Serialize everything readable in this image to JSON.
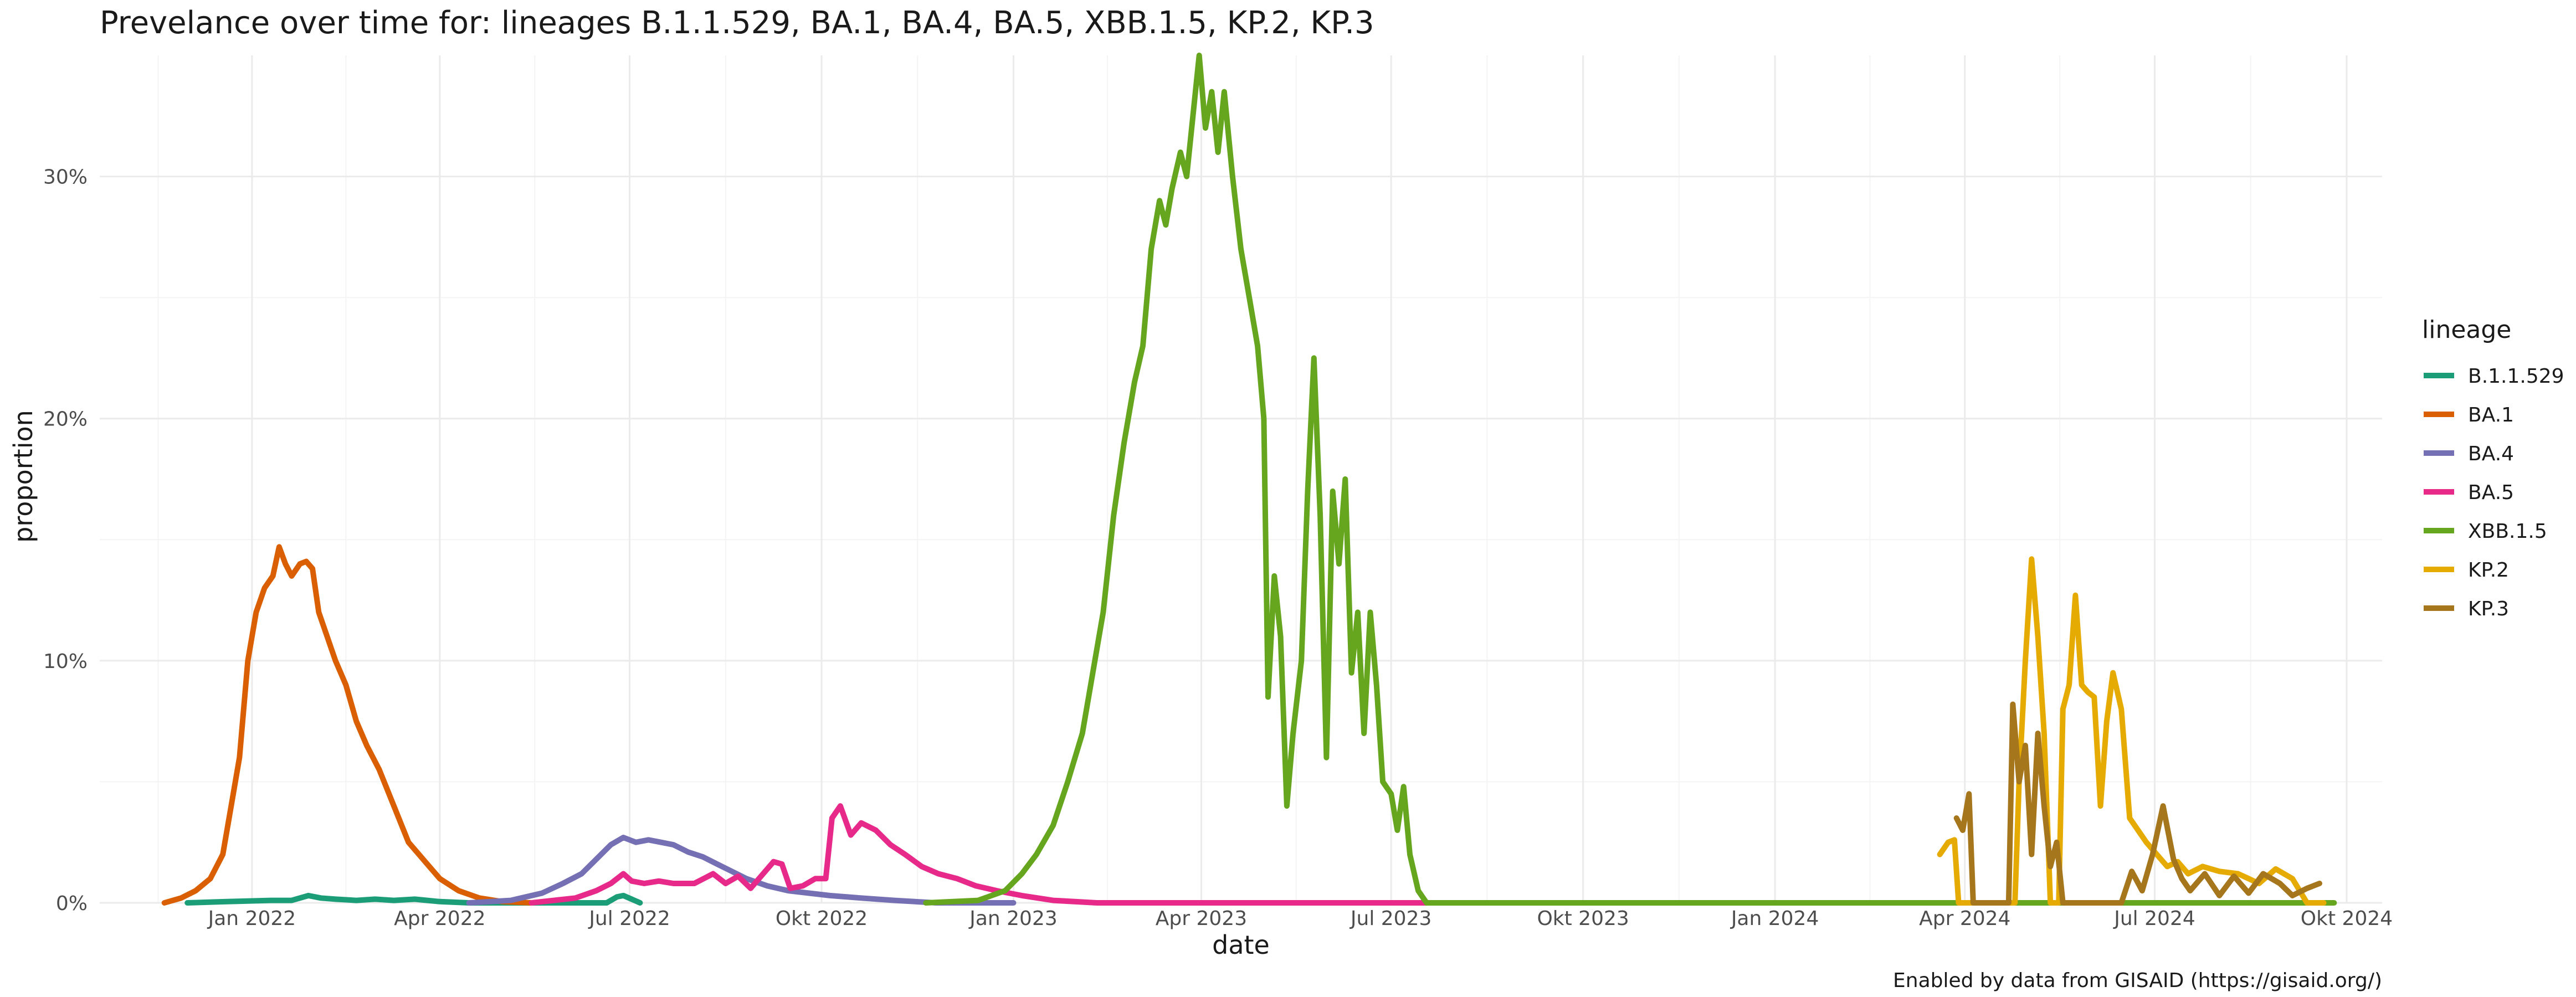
{
  "chart_data": {
    "type": "line",
    "title": "Prevelance over time for: lineages B.1.1.529, BA.1, BA.4, BA.5, XBB.1.5, KP.2, KP.3",
    "xlabel": "date",
    "ylabel": "proportion",
    "caption": "Enabled by data from GISAID (https://gisaid.org/)",
    "xlim": [
      "2021-10-20",
      "2024-10-18"
    ],
    "ylim": [
      0,
      0.35
    ],
    "x_ticks": [
      {
        "date": "2022-01-01",
        "label": "Jan 2022"
      },
      {
        "date": "2022-04-01",
        "label": "Apr 2022"
      },
      {
        "date": "2022-07-01",
        "label": "Jul 2022"
      },
      {
        "date": "2022-10-01",
        "label": "Okt 2022"
      },
      {
        "date": "2023-01-01",
        "label": "Jan 2023"
      },
      {
        "date": "2023-04-01",
        "label": "Apr 2023"
      },
      {
        "date": "2023-07-01",
        "label": "Jul 2023"
      },
      {
        "date": "2023-10-01",
        "label": "Okt 2023"
      },
      {
        "date": "2024-01-01",
        "label": "Jan 2024"
      },
      {
        "date": "2024-04-01",
        "label": "Apr 2024"
      },
      {
        "date": "2024-07-01",
        "label": "Jul 2024"
      },
      {
        "date": "2024-10-01",
        "label": "Okt 2024"
      }
    ],
    "y_ticks": [
      {
        "value": 0,
        "label": "0%"
      },
      {
        "value": 0.1,
        "label": "10%"
      },
      {
        "value": 0.2,
        "label": "20%"
      },
      {
        "value": 0.3,
        "label": "30%"
      }
    ],
    "grid": true,
    "legend": {
      "title": "lineage",
      "position": "right"
    },
    "series": [
      {
        "name": "B.1.1.529",
        "color": "#1b9e77",
        "points": [
          [
            "2021-12-01",
            0
          ],
          [
            "2021-12-20",
            0.0005
          ],
          [
            "2022-01-10",
            0.001
          ],
          [
            "2022-01-20",
            0.001
          ],
          [
            "2022-01-28",
            0.003
          ],
          [
            "2022-02-03",
            0.002
          ],
          [
            "2022-02-10",
            0.0015
          ],
          [
            "2022-02-20",
            0.001
          ],
          [
            "2022-03-01",
            0.0015
          ],
          [
            "2022-03-10",
            0.001
          ],
          [
            "2022-03-20",
            0.0015
          ],
          [
            "2022-04-01",
            0.0005
          ],
          [
            "2022-04-15",
            0
          ],
          [
            "2022-06-20",
            0
          ],
          [
            "2022-06-25",
            0.0025
          ],
          [
            "2022-06-28",
            0.003
          ],
          [
            "2022-07-02",
            0.0015
          ],
          [
            "2022-07-06",
            0
          ]
        ]
      },
      {
        "name": "BA.1",
        "color": "#d95f02",
        "points": [
          [
            "2021-11-20",
            0
          ],
          [
            "2021-11-28",
            0.002
          ],
          [
            "2021-12-05",
            0.005
          ],
          [
            "2021-12-12",
            0.01
          ],
          [
            "2021-12-18",
            0.02
          ],
          [
            "2021-12-22",
            0.04
          ],
          [
            "2021-12-26",
            0.06
          ],
          [
            "2021-12-30",
            0.1
          ],
          [
            "2022-01-03",
            0.12
          ],
          [
            "2022-01-07",
            0.13
          ],
          [
            "2022-01-11",
            0.135
          ],
          [
            "2022-01-14",
            0.147
          ],
          [
            "2022-01-17",
            0.14
          ],
          [
            "2022-01-20",
            0.135
          ],
          [
            "2022-01-24",
            0.14
          ],
          [
            "2022-01-27",
            0.141
          ],
          [
            "2022-01-30",
            0.138
          ],
          [
            "2022-02-02",
            0.12
          ],
          [
            "2022-02-06",
            0.11
          ],
          [
            "2022-02-10",
            0.1
          ],
          [
            "2022-02-15",
            0.09
          ],
          [
            "2022-02-20",
            0.075
          ],
          [
            "2022-02-25",
            0.065
          ],
          [
            "2022-03-03",
            0.055
          ],
          [
            "2022-03-10",
            0.04
          ],
          [
            "2022-03-17",
            0.025
          ],
          [
            "2022-03-25",
            0.017
          ],
          [
            "2022-04-01",
            0.01
          ],
          [
            "2022-04-10",
            0.005
          ],
          [
            "2022-04-20",
            0.002
          ],
          [
            "2022-05-01",
            0.0005
          ],
          [
            "2022-05-15",
            0
          ]
        ]
      },
      {
        "name": "BA.4",
        "color": "#7570b3",
        "points": [
          [
            "2022-04-15",
            0
          ],
          [
            "2022-05-05",
            0.001
          ],
          [
            "2022-05-20",
            0.004
          ],
          [
            "2022-05-30",
            0.008
          ],
          [
            "2022-06-08",
            0.012
          ],
          [
            "2022-06-15",
            0.018
          ],
          [
            "2022-06-22",
            0.024
          ],
          [
            "2022-06-28",
            0.027
          ],
          [
            "2022-07-04",
            0.025
          ],
          [
            "2022-07-10",
            0.026
          ],
          [
            "2022-07-16",
            0.025
          ],
          [
            "2022-07-22",
            0.024
          ],
          [
            "2022-07-29",
            0.021
          ],
          [
            "2022-08-05",
            0.019
          ],
          [
            "2022-08-12",
            0.016
          ],
          [
            "2022-08-19",
            0.013
          ],
          [
            "2022-08-26",
            0.01
          ],
          [
            "2022-09-05",
            0.007
          ],
          [
            "2022-09-15",
            0.005
          ],
          [
            "2022-09-25",
            0.004
          ],
          [
            "2022-10-05",
            0.003
          ],
          [
            "2022-10-20",
            0.002
          ],
          [
            "2022-11-05",
            0.001
          ],
          [
            "2022-11-25",
            0
          ],
          [
            "2023-01-01",
            0
          ]
        ]
      },
      {
        "name": "BA.5",
        "color": "#e7298a",
        "points": [
          [
            "2022-05-15",
            0
          ],
          [
            "2022-06-05",
            0.002
          ],
          [
            "2022-06-15",
            0.005
          ],
          [
            "2022-06-22",
            0.008
          ],
          [
            "2022-06-28",
            0.012
          ],
          [
            "2022-07-02",
            0.009
          ],
          [
            "2022-07-08",
            0.008
          ],
          [
            "2022-07-15",
            0.009
          ],
          [
            "2022-07-22",
            0.008
          ],
          [
            "2022-08-01",
            0.008
          ],
          [
            "2022-08-10",
            0.012
          ],
          [
            "2022-08-16",
            0.008
          ],
          [
            "2022-08-22",
            0.011
          ],
          [
            "2022-08-28",
            0.006
          ],
          [
            "2022-09-03",
            0.012
          ],
          [
            "2022-09-08",
            0.017
          ],
          [
            "2022-09-12",
            0.016
          ],
          [
            "2022-09-16",
            0.006
          ],
          [
            "2022-09-22",
            0.007
          ],
          [
            "2022-09-28",
            0.01
          ],
          [
            "2022-10-03",
            0.01
          ],
          [
            "2022-10-06",
            0.035
          ],
          [
            "2022-10-10",
            0.04
          ],
          [
            "2022-10-15",
            0.028
          ],
          [
            "2022-10-20",
            0.033
          ],
          [
            "2022-10-27",
            0.03
          ],
          [
            "2022-11-03",
            0.024
          ],
          [
            "2022-11-10",
            0.02
          ],
          [
            "2022-11-18",
            0.015
          ],
          [
            "2022-11-26",
            0.012
          ],
          [
            "2022-12-05",
            0.01
          ],
          [
            "2022-12-14",
            0.007
          ],
          [
            "2022-12-24",
            0.005
          ],
          [
            "2023-01-05",
            0.003
          ],
          [
            "2023-01-20",
            0.001
          ],
          [
            "2023-02-10",
            0
          ],
          [
            "2023-07-20",
            0
          ]
        ]
      },
      {
        "name": "XBB.1.5",
        "color": "#66a61e",
        "points": [
          [
            "2022-11-20",
            0
          ],
          [
            "2022-12-15",
            0.001
          ],
          [
            "2022-12-28",
            0.005
          ],
          [
            "2023-01-05",
            0.012
          ],
          [
            "2023-01-12",
            0.02
          ],
          [
            "2023-01-20",
            0.032
          ],
          [
            "2023-01-27",
            0.05
          ],
          [
            "2023-02-03",
            0.07
          ],
          [
            "2023-02-08",
            0.095
          ],
          [
            "2023-02-13",
            0.12
          ],
          [
            "2023-02-18",
            0.16
          ],
          [
            "2023-02-23",
            0.19
          ],
          [
            "2023-02-28",
            0.215
          ],
          [
            "2023-03-04",
            0.23
          ],
          [
            "2023-03-08",
            0.27
          ],
          [
            "2023-03-12",
            0.29
          ],
          [
            "2023-03-15",
            0.28
          ],
          [
            "2023-03-18",
            0.295
          ],
          [
            "2023-03-22",
            0.31
          ],
          [
            "2023-03-25",
            0.3
          ],
          [
            "2023-03-28",
            0.325
          ],
          [
            "2023-03-31",
            0.35
          ],
          [
            "2023-04-03",
            0.32
          ],
          [
            "2023-04-06",
            0.335
          ],
          [
            "2023-04-09",
            0.31
          ],
          [
            "2023-04-12",
            0.335
          ],
          [
            "2023-04-16",
            0.3
          ],
          [
            "2023-04-20",
            0.27
          ],
          [
            "2023-04-24",
            0.25
          ],
          [
            "2023-04-28",
            0.23
          ],
          [
            "2023-05-01",
            0.2
          ],
          [
            "2023-05-03",
            0.085
          ],
          [
            "2023-05-06",
            0.135
          ],
          [
            "2023-05-09",
            0.11
          ],
          [
            "2023-05-12",
            0.04
          ],
          [
            "2023-05-15",
            0.07
          ],
          [
            "2023-05-19",
            0.1
          ],
          [
            "2023-05-22",
            0.17
          ],
          [
            "2023-05-25",
            0.225
          ],
          [
            "2023-05-28",
            0.16
          ],
          [
            "2023-05-31",
            0.06
          ],
          [
            "2023-06-03",
            0.17
          ],
          [
            "2023-06-06",
            0.14
          ],
          [
            "2023-06-09",
            0.175
          ],
          [
            "2023-06-12",
            0.095
          ],
          [
            "2023-06-15",
            0.12
          ],
          [
            "2023-06-18",
            0.07
          ],
          [
            "2023-06-21",
            0.12
          ],
          [
            "2023-06-24",
            0.09
          ],
          [
            "2023-06-27",
            0.05
          ],
          [
            "2023-07-01",
            0.045
          ],
          [
            "2023-07-04",
            0.03
          ],
          [
            "2023-07-07",
            0.048
          ],
          [
            "2023-07-10",
            0.02
          ],
          [
            "2023-07-14",
            0.005
          ],
          [
            "2023-07-18",
            0
          ],
          [
            "2024-09-25",
            0
          ]
        ]
      },
      {
        "name": "KP.2",
        "color": "#e6ab02",
        "points": [
          [
            "2024-03-20",
            0.02
          ],
          [
            "2024-03-24",
            0.025
          ],
          [
            "2024-03-27",
            0.026
          ],
          [
            "2024-03-29",
            0
          ],
          [
            "2024-04-25",
            0
          ],
          [
            "2024-04-27",
            0.05
          ],
          [
            "2024-04-30",
            0.1
          ],
          [
            "2024-05-03",
            0.142
          ],
          [
            "2024-05-06",
            0.11
          ],
          [
            "2024-05-09",
            0.07
          ],
          [
            "2024-05-12",
            0
          ],
          [
            "2024-05-16",
            0
          ],
          [
            "2024-05-18",
            0.08
          ],
          [
            "2024-05-21",
            0.09
          ],
          [
            "2024-05-24",
            0.127
          ],
          [
            "2024-05-27",
            0.09
          ],
          [
            "2024-05-30",
            0.087
          ],
          [
            "2024-06-02",
            0.085
          ],
          [
            "2024-06-05",
            0.04
          ],
          [
            "2024-06-08",
            0.075
          ],
          [
            "2024-06-11",
            0.095
          ],
          [
            "2024-06-15",
            0.08
          ],
          [
            "2024-06-19",
            0.035
          ],
          [
            "2024-06-23",
            0.03
          ],
          [
            "2024-06-27",
            0.025
          ],
          [
            "2024-07-02",
            0.02
          ],
          [
            "2024-07-07",
            0.015
          ],
          [
            "2024-07-12",
            0.017
          ],
          [
            "2024-07-17",
            0.012
          ],
          [
            "2024-07-24",
            0.015
          ],
          [
            "2024-08-01",
            0.013
          ],
          [
            "2024-08-10",
            0.012
          ],
          [
            "2024-08-20",
            0.008
          ],
          [
            "2024-08-28",
            0.014
          ],
          [
            "2024-09-05",
            0.01
          ],
          [
            "2024-09-12",
            0
          ],
          [
            "2024-09-20",
            0
          ]
        ]
      },
      {
        "name": "KP.3",
        "color": "#a6761d",
        "points": [
          [
            "2024-03-28",
            0.035
          ],
          [
            "2024-03-31",
            0.03
          ],
          [
            "2024-04-03",
            0.045
          ],
          [
            "2024-04-05",
            0
          ],
          [
            "2024-04-22",
            0
          ],
          [
            "2024-04-24",
            0.082
          ],
          [
            "2024-04-27",
            0.05
          ],
          [
            "2024-04-30",
            0.065
          ],
          [
            "2024-05-03",
            0.02
          ],
          [
            "2024-05-06",
            0.07
          ],
          [
            "2024-05-09",
            0.04
          ],
          [
            "2024-05-12",
            0.015
          ],
          [
            "2024-05-15",
            0.025
          ],
          [
            "2024-05-18",
            0
          ],
          [
            "2024-06-15",
            0
          ],
          [
            "2024-06-20",
            0.013
          ],
          [
            "2024-06-25",
            0.005
          ],
          [
            "2024-06-30",
            0.02
          ],
          [
            "2024-07-05",
            0.04
          ],
          [
            "2024-07-10",
            0.018
          ],
          [
            "2024-07-14",
            0.01
          ],
          [
            "2024-07-18",
            0.005
          ],
          [
            "2024-07-25",
            0.012
          ],
          [
            "2024-08-01",
            0.003
          ],
          [
            "2024-08-08",
            0.011
          ],
          [
            "2024-08-15",
            0.004
          ],
          [
            "2024-08-22",
            0.012
          ],
          [
            "2024-08-30",
            0.008
          ],
          [
            "2024-09-05",
            0.003
          ],
          [
            "2024-09-12",
            0.006
          ],
          [
            "2024-09-18",
            0.008
          ]
        ]
      }
    ]
  }
}
